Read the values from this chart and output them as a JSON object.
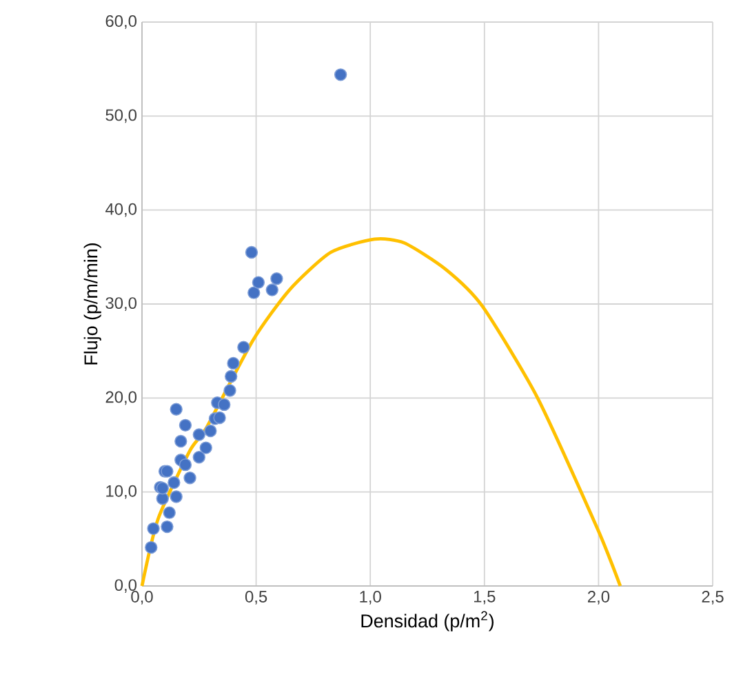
{
  "chart_data": {
    "type": "scatter",
    "xlabel": "Densidad (p/m$^{2}$)",
    "ylabel": "Flujo (p/m/min)",
    "xlim": [
      0,
      2.5
    ],
    "ylim": [
      0,
      60
    ],
    "xticks": [
      {
        "value": 0,
        "label": "0,0"
      },
      {
        "value": 0.5,
        "label": "0,5"
      },
      {
        "value": 1,
        "label": "1,0"
      },
      {
        "value": 1.5,
        "label": "1,5"
      },
      {
        "value": 2,
        "label": "2,0"
      },
      {
        "value": 2.5,
        "label": "2,5"
      }
    ],
    "yticks": [
      {
        "value": 0,
        "label": "0,0"
      },
      {
        "value": 10,
        "label": "10,0"
      },
      {
        "value": 20,
        "label": "20,0"
      },
      {
        "value": 30,
        "label": "30,0"
      },
      {
        "value": 40,
        "label": "40,0"
      },
      {
        "value": 50,
        "label": "50,0"
      },
      {
        "value": 60,
        "label": "60,0"
      }
    ],
    "grid": true,
    "series": [
      {
        "marker": "circle",
        "color": "#4472c4",
        "x": [
          0.04,
          0.05,
          0.08,
          0.09,
          0.09,
          0.1,
          0.11,
          0.11,
          0.12,
          0.14,
          0.15,
          0.15,
          0.17,
          0.17,
          0.19,
          0.19,
          0.21,
          0.25,
          0.25,
          0.28,
          0.3,
          0.32,
          0.33,
          0.34,
          0.36,
          0.385,
          0.39,
          0.4,
          0.445,
          0.48,
          0.49,
          0.51,
          0.57,
          0.59,
          0.87
        ],
        "values": [
          4.1,
          6.1,
          10.5,
          9.3,
          10.4,
          12.2,
          6.3,
          12.2,
          7.8,
          11.0,
          9.5,
          18.8,
          13.4,
          15.4,
          12.9,
          17.1,
          11.5,
          13.7,
          16.1,
          14.7,
          16.5,
          17.8,
          19.5,
          17.9,
          19.3,
          20.8,
          22.3,
          23.7,
          25.4,
          35.5,
          31.2,
          32.3,
          31.5,
          32.7,
          54.4
        ]
      },
      {
        "type": "line",
        "color": "#ffc000",
        "marker": "none",
        "x": [
          0,
          0.07,
          0.21,
          0.284,
          0.485,
          0.646,
          0.827,
          1.019,
          1.149,
          1.33,
          1.49,
          1.733,
          1.995,
          2.095
        ],
        "values": [
          0,
          7.1,
          14.4,
          16.9,
          26.1,
          31.5,
          35.5,
          36.9,
          36.5,
          33.7,
          29.8,
          20.0,
          6.1,
          0
        ]
      }
    ]
  }
}
